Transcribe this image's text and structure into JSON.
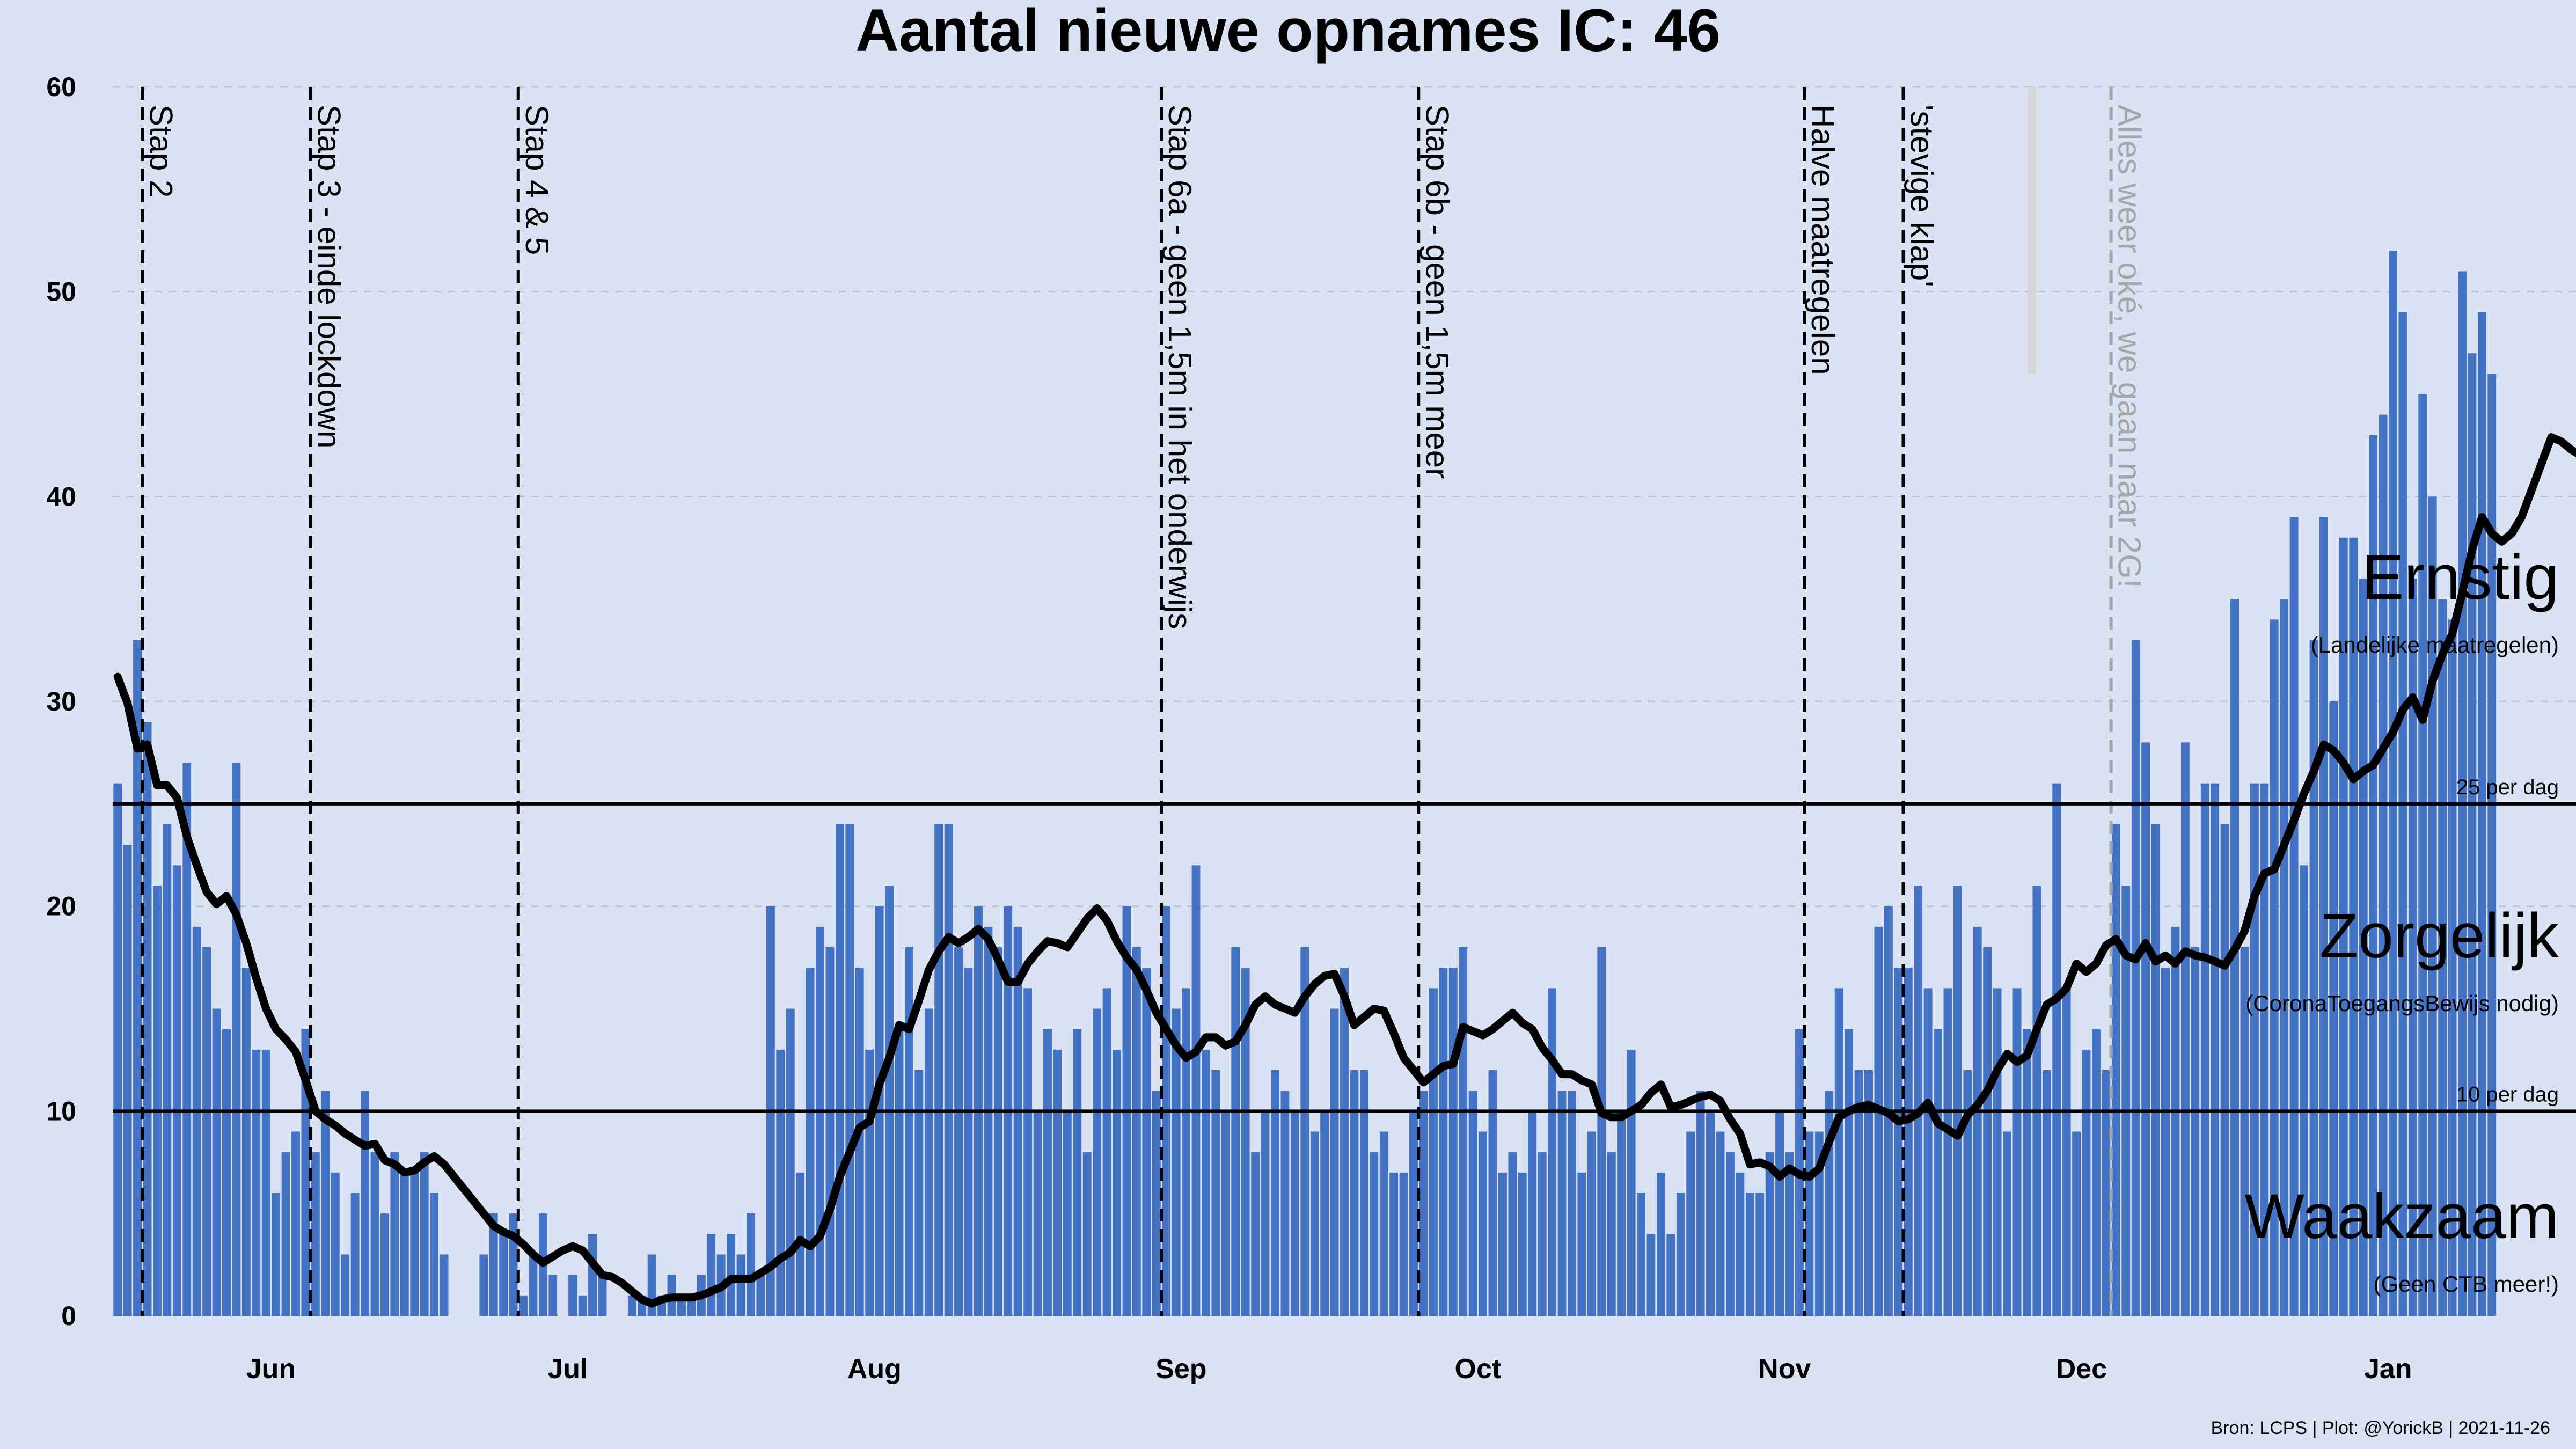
{
  "chart_data": {
    "type": "bar",
    "title": "Aantal nieuwe opnames IC:  46",
    "source": "Bron: LCPS | Plot: @YorickB |  2021-11-26",
    "ylim": [
      0,
      60
    ],
    "yticks": [
      "0",
      "10",
      "20",
      "30",
      "40",
      "50",
      "60"
    ],
    "month_labels": [
      {
        "label": "Jun",
        "date": "2021-06-01"
      },
      {
        "label": "Jul",
        "date": "2021-07-01"
      },
      {
        "label": "Aug",
        "date": "2021-08-01"
      },
      {
        "label": "Sep",
        "date": "2021-09-01"
      },
      {
        "label": "Oct",
        "date": "2021-10-01"
      },
      {
        "label": "Nov",
        "date": "2021-11-01"
      },
      {
        "label": "Dec",
        "date": "2021-12-01"
      },
      {
        "label": "Jan",
        "date": "2022-01-01"
      }
    ],
    "xlim": [
      "2021-05-16",
      "2022-01-20"
    ],
    "grid": true,
    "bar_color": "#4472c4",
    "line_color": "#000000",
    "series": [
      {
        "type": "bar",
        "start_date": "2021-05-16",
        "values": [
          26,
          23,
          33,
          29,
          21,
          24,
          22,
          27,
          19,
          18,
          15,
          14,
          27,
          17,
          13,
          13,
          6,
          8,
          9,
          14,
          8,
          11,
          7,
          3,
          6,
          11,
          8,
          5,
          8,
          7,
          7,
          8,
          6,
          3,
          0,
          0,
          0,
          3,
          5,
          4,
          5,
          1,
          3,
          5,
          2,
          0,
          2,
          1,
          4,
          2,
          0,
          0,
          1,
          1,
          3,
          1,
          2,
          1,
          1,
          2,
          4,
          3,
          4,
          3,
          5,
          2,
          20,
          13,
          15,
          7,
          17,
          19,
          18,
          24,
          24,
          17,
          13,
          20,
          21,
          14,
          18,
          12,
          15,
          24,
          24,
          18,
          17,
          20,
          19,
          18,
          20,
          19,
          16,
          10,
          14,
          13,
          10,
          14,
          8,
          15,
          16,
          13,
          20,
          18,
          17,
          11,
          20,
          15,
          16,
          22,
          13,
          12,
          10,
          18,
          17,
          8,
          10,
          12,
          11,
          10,
          18,
          9,
          10,
          15,
          17,
          12,
          12,
          8,
          9,
          7,
          7,
          10,
          11,
          16,
          17,
          17,
          18,
          11,
          9,
          12,
          7,
          8,
          7,
          10,
          8,
          16,
          11,
          11,
          7,
          9,
          18,
          8,
          10,
          13,
          6,
          4,
          7,
          4,
          6,
          9,
          11,
          10,
          9,
          8,
          7,
          6,
          6,
          8,
          10,
          8,
          14,
          9,
          9,
          11,
          16,
          14,
          12,
          12,
          19,
          20,
          17,
          17,
          21,
          16,
          14,
          16,
          21,
          12,
          19,
          18,
          16,
          9,
          16,
          14,
          21,
          12,
          26,
          16,
          9,
          13,
          14,
          12,
          24,
          21,
          33,
          28,
          24,
          17,
          19,
          28,
          18,
          26,
          26,
          24,
          35,
          18,
          26,
          26,
          34,
          35,
          39,
          22,
          33,
          39,
          30,
          38,
          38,
          36,
          43,
          44,
          52,
          49,
          36,
          45,
          40,
          35,
          34,
          51,
          47,
          49,
          46
        ]
      },
      {
        "type": "line",
        "name": "7-daags gemiddelde",
        "start_date": "2021-05-16",
        "values": [
          31.2,
          29.9,
          27.7,
          27.9,
          25.9,
          25.9,
          25.3,
          23.4,
          22,
          20.7,
          20.1,
          20.5,
          19.6,
          18.2,
          16.5,
          15,
          14,
          13.5,
          12.9,
          11.5,
          10,
          9.6,
          9.3,
          8.9,
          8.6,
          8.3,
          8.4,
          7.6,
          7.4,
          7,
          7.1,
          7.5,
          7.8,
          7.4,
          6.8,
          6.2,
          5.6,
          5,
          4.4,
          4.1,
          3.9,
          3.5,
          3,
          2.6,
          2.9,
          3.2,
          3.4,
          3.2,
          2.6,
          2,
          1.9,
          1.6,
          1.2,
          0.8,
          0.6,
          0.8,
          0.9,
          0.9,
          0.9,
          1,
          1.2,
          1.4,
          1.8,
          1.8,
          1.8,
          2.1,
          2.4,
          2.8,
          3.1,
          3.7,
          3.4,
          3.9,
          5.2,
          6.8,
          8,
          9.2,
          9.5,
          11.3,
          12.6,
          14.2,
          14,
          15.4,
          16.9,
          17.8,
          18.5,
          18.2,
          18.5,
          18.9,
          18.4,
          17.4,
          16.3,
          16.3,
          17.2,
          17.8,
          18.3,
          18.2,
          18,
          18.7,
          19.4,
          19.9,
          19.3,
          18.3,
          17.5,
          16.9,
          15.9,
          14.8,
          14,
          13.2,
          12.6,
          12.9,
          13.6,
          13.6,
          13.2,
          13.4,
          14.2,
          15.2,
          15.6,
          15.2,
          15,
          14.8,
          15.6,
          16.2,
          16.6,
          16.7,
          15.6,
          14.2,
          14.6,
          15,
          14.9,
          13.8,
          12.6,
          12,
          11.4,
          11.8,
          12.2,
          12.3,
          14.1,
          13.9,
          13.7,
          14,
          14.4,
          14.8,
          14.3,
          14,
          13.1,
          12.5,
          11.8,
          11.8,
          11.5,
          11.3,
          9.9,
          9.7,
          9.7,
          10,
          10.3,
          10.9,
          11.3,
          10.2,
          10.3,
          10.5,
          10.7,
          10.8,
          10.5,
          9.6,
          8.9,
          7.4,
          7.5,
          7.3,
          6.8,
          7.2,
          6.9,
          6.8,
          7.2,
          8.5,
          9.7,
          10,
          10.2,
          10.3,
          10.1,
          9.9,
          9.5,
          9.6,
          9.9,
          10.4,
          9.4,
          9.1,
          8.8,
          9.8,
          10.3,
          11,
          12,
          12.8,
          12.4,
          12.7,
          14,
          15.2,
          15.5,
          16,
          17.2,
          16.8,
          17.2,
          18.1,
          18.4,
          17.6,
          17.4,
          18.2,
          17.3,
          17.6,
          17.2,
          17.8,
          17.6,
          17.5,
          17.3,
          17.1,
          17.9,
          18.8,
          20.5,
          21.6,
          21.8,
          23,
          24.2,
          25.5,
          26.6,
          27.9,
          27.6,
          27,
          26.2,
          26.6,
          26.9,
          27.7,
          28.5,
          29.6,
          30.2,
          29.1,
          31,
          32.3,
          33.3,
          35.3,
          37.4,
          39,
          38.2,
          37.8,
          38.2,
          39,
          40.3,
          41.6,
          42.9,
          42.7,
          42.3,
          42
        ]
      }
    ],
    "last_day_marker_date": "2021-11-26",
    "thresholds": [
      {
        "value": 25,
        "label": "25 per dag"
      },
      {
        "value": 10,
        "label": "10 per dag"
      }
    ],
    "zones": [
      {
        "title": "Ernstig",
        "subtitle": "(Landelijke maatregelen)",
        "y": 35
      },
      {
        "title": "Zorgelijk",
        "subtitle": "(CoronaToegangsBewijs nodig)",
        "y": 17.5
      },
      {
        "title": "Waakzaam",
        "subtitle": "(Geen CTB meer!)",
        "y": 3.8
      }
    ],
    "events": [
      {
        "label": "Stap 2",
        "date": "2021-05-19",
        "color": "#000000"
      },
      {
        "label": "Stap 3 - einde lockdown",
        "date": "2021-06-05",
        "color": "#000000"
      },
      {
        "label": "Stap 4 & 5",
        "date": "2021-06-26",
        "color": "#000000"
      },
      {
        "label": "Stap 6a - geen 1,5m in het onderwijs",
        "date": "2021-08-30",
        "color": "#000000"
      },
      {
        "label": "Stap 6b - geen 1,5m meer",
        "date": "2021-09-25",
        "color": "#000000"
      },
      {
        "label": "Halve maatregelen",
        "date": "2021-11-03",
        "color": "#000000"
      },
      {
        "label": "'stevige klap'",
        "date": "2021-11-13",
        "color": "#000000"
      },
      {
        "label": "Alles weer oké, we gaan naar 2G!",
        "date": "2021-12-04",
        "color": "#a6a6a6"
      }
    ]
  }
}
